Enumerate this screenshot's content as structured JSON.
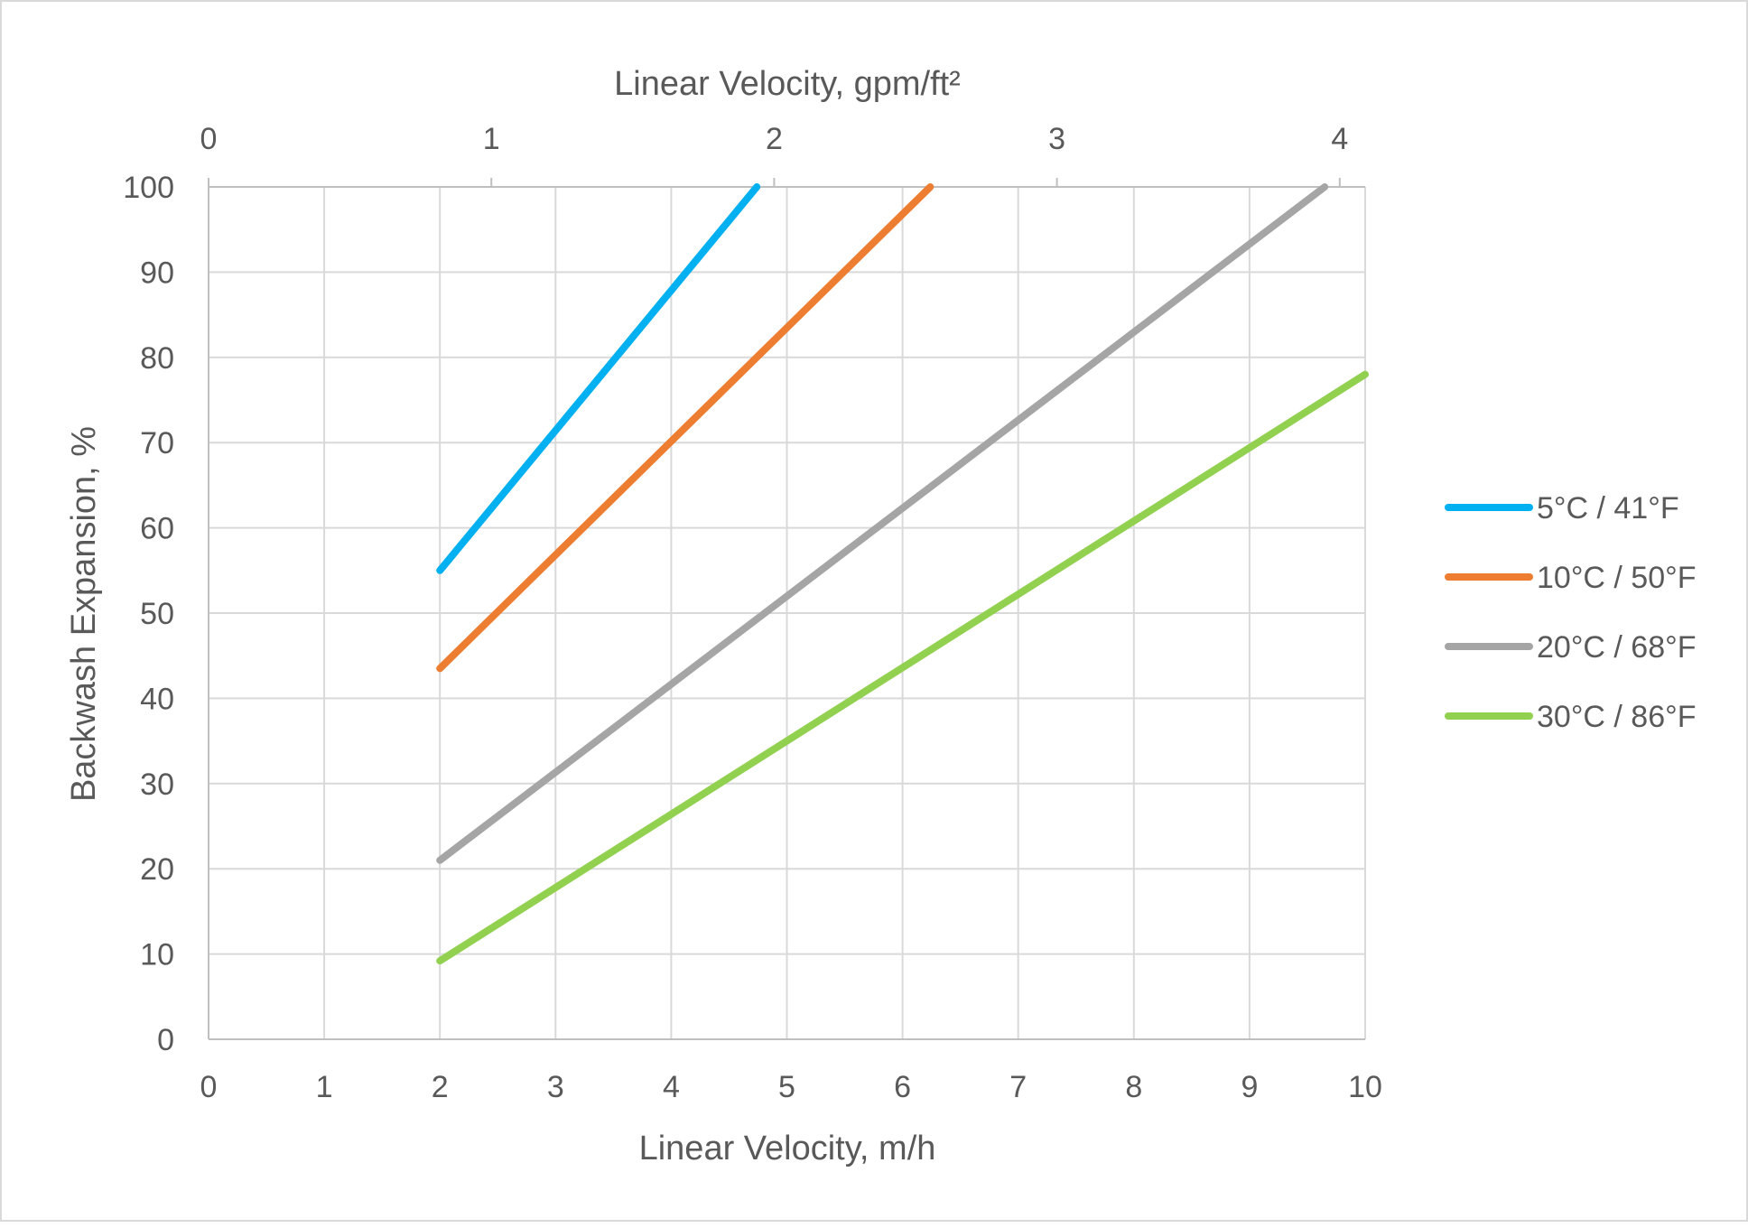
{
  "chart_data": {
    "type": "line",
    "title": "",
    "xlabel": "Linear Velocity, m/h",
    "x2label": "Linear Velocity, gpm/ft²",
    "ylabel": "Backwash Expansion, %",
    "xlim": [
      0,
      10
    ],
    "x2lim": [
      0,
      4.09
    ],
    "ylim": [
      0,
      100
    ],
    "x_ticks": [
      "0",
      "1",
      "2",
      "3",
      "4",
      "5",
      "6",
      "7",
      "8",
      "9",
      "10"
    ],
    "x2_ticks": [
      "0",
      "1",
      "2",
      "3",
      "4"
    ],
    "y_ticks": [
      "0",
      "10",
      "20",
      "30",
      "40",
      "50",
      "60",
      "70",
      "80",
      "90",
      "100"
    ],
    "grid": true,
    "legend_position": "right",
    "series": [
      {
        "name": "5°C / 41°F",
        "color": "#00b0f0",
        "x": [
          2,
          4.74
        ],
        "y": [
          55,
          100
        ]
      },
      {
        "name": "10°C / 50°F",
        "color": "#ed7d31",
        "x": [
          2,
          6.24
        ],
        "y": [
          43.5,
          100
        ]
      },
      {
        "name": "20°C / 68°F",
        "color": "#a5a5a5",
        "x": [
          2,
          9.65
        ],
        "y": [
          21,
          100
        ]
      },
      {
        "name": "30°C / 86°F",
        "color": "#92d050",
        "x": [
          2,
          10
        ],
        "y": [
          9.2,
          78
        ]
      }
    ]
  }
}
